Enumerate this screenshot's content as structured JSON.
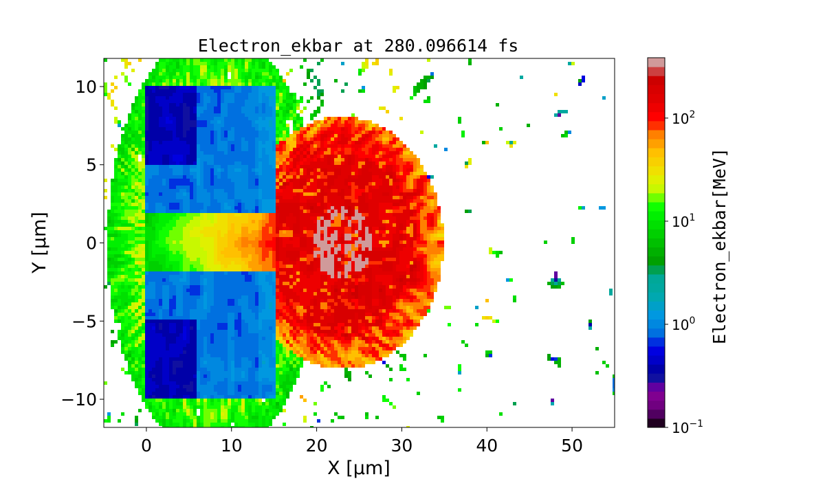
{
  "chart_data": {
    "type": "heatmap",
    "title": "Electron_ekbar at 280.096614 fs",
    "xlabel": "X  [μm]",
    "ylabel": "Y  [μm]",
    "xlim": [
      -5,
      55
    ],
    "ylim": [
      -11.8,
      11.8
    ],
    "xticks": [
      {
        "v": 0,
        "label": "0"
      },
      {
        "v": 10,
        "label": "10"
      },
      {
        "v": 20,
        "label": "20"
      },
      {
        "v": 30,
        "label": "30"
      },
      {
        "v": 40,
        "label": "40"
      },
      {
        "v": 50,
        "label": "50"
      }
    ],
    "yticks": [
      {
        "v": 10,
        "label": "10"
      },
      {
        "v": 5,
        "label": "5"
      },
      {
        "v": 0,
        "label": "0"
      },
      {
        "v": -5,
        "label": "−5"
      },
      {
        "v": -10,
        "label": "−10"
      }
    ],
    "colorbar": {
      "label": "Electron_ekbar[MeV]",
      "scale": "log",
      "range": [
        0.1,
        385
      ],
      "ticks": [
        {
          "v": 0.1,
          "base": "10",
          "exp": "−1"
        },
        {
          "v": 1,
          "base": "10",
          "exp": "0"
        },
        {
          "v": 10,
          "base": "10",
          "exp": "1"
        },
        {
          "v": 100,
          "base": "10",
          "exp": "2"
        }
      ],
      "colors_bottom_to_top": [
        "#200020",
        "#500060",
        "#700080",
        "#800090",
        "#6000a0",
        "#1010a0",
        "#0000a8",
        "#0000c8",
        "#0000e0",
        "#0030e0",
        "#0070e0",
        "#0088e0",
        "#0098e0",
        "#00a0c8",
        "#00a8b0",
        "#00a8a0",
        "#00a898",
        "#00a050",
        "#00a000",
        "#00b000",
        "#00c000",
        "#00d000",
        "#00e000",
        "#00f000",
        "#10ff00",
        "#70ff00",
        "#c8f800",
        "#e0f000",
        "#f0e000",
        "#f8d000",
        "#ffc000",
        "#ffa000",
        "#ff8000",
        "#ff3000",
        "#ff0000",
        "#ee0000",
        "#e00000",
        "#d80000",
        "#cc0000",
        "#cc4040",
        "#d09a9a"
      ]
    }
  }
}
